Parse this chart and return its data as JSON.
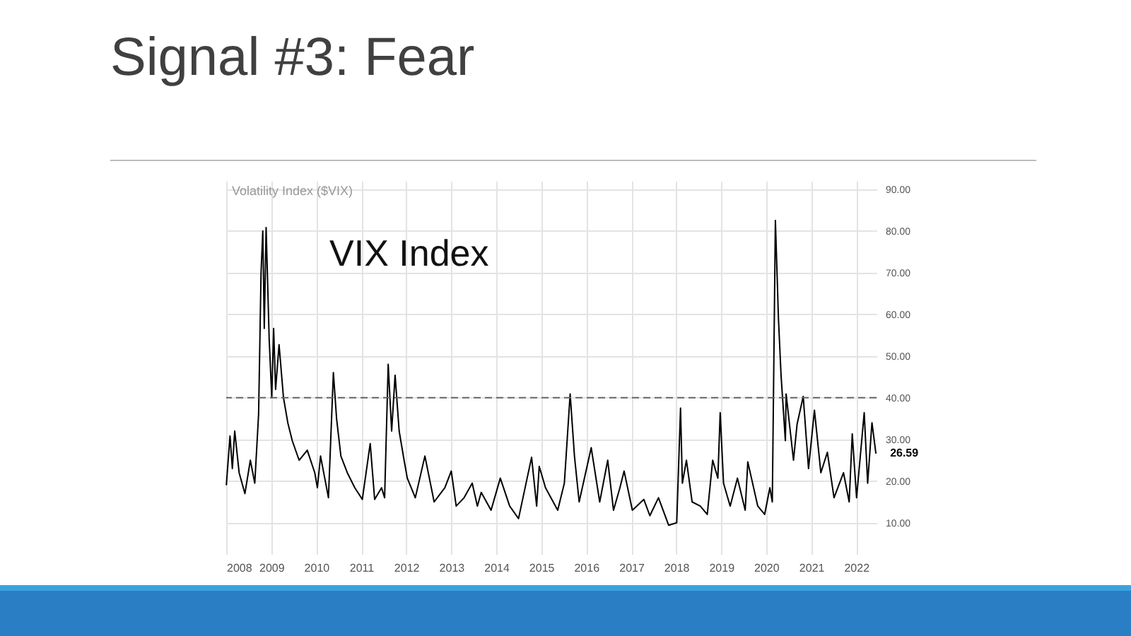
{
  "chart_data": {
    "type": "line",
    "title": "Signal #3: Fear",
    "subtitle": "Volatility Index ($VIX)",
    "annotations": [
      "VIX Index"
    ],
    "x": [
      "2008-01-02",
      "2008-02-01",
      "2008-02-20",
      "2008-03-10",
      "2008-04-15",
      "2008-06-01",
      "2008-07-15",
      "2008-08-20",
      "2008-09-20",
      "2008-10-10",
      "2008-10-24",
      "2008-11-05",
      "2008-11-20",
      "2008-12-15",
      "2009-01-05",
      "2009-01-20",
      "2009-02-05",
      "2009-03-05",
      "2009-04-10",
      "2009-05-15",
      "2009-06-20",
      "2009-08-15",
      "2009-10-20",
      "2009-12-20",
      "2010-01-10",
      "2010-02-05",
      "2010-04-10",
      "2010-05-20",
      "2010-06-15",
      "2010-07-20",
      "2010-09-10",
      "2010-11-10",
      "2011-01-10",
      "2011-03-15",
      "2011-04-20",
      "2011-06-15",
      "2011-07-10",
      "2011-08-08",
      "2011-09-05",
      "2011-10-03",
      "2011-11-05",
      "2011-12-15",
      "2012-01-10",
      "2012-03-15",
      "2012-06-01",
      "2012-08-15",
      "2012-11-10",
      "2013-01-01",
      "2013-02-10",
      "2013-04-15",
      "2013-06-20",
      "2013-08-01",
      "2013-09-01",
      "2013-11-20",
      "2014-02-03",
      "2014-04-20",
      "2014-07-01",
      "2014-10-15",
      "2014-11-25",
      "2014-12-16",
      "2015-02-05",
      "2015-05-15",
      "2015-07-08",
      "2015-08-24",
      "2015-09-28",
      "2015-11-05",
      "2016-02-11",
      "2016-04-20",
      "2016-06-24",
      "2016-08-10",
      "2016-10-01",
      "2016-11-04",
      "2017-01-10",
      "2017-04-13",
      "2017-06-01",
      "2017-08-10",
      "2017-11-01",
      "2018-01-05",
      "2018-02-05",
      "2018-02-20",
      "2018-03-25",
      "2018-05-10",
      "2018-07-15",
      "2018-09-10",
      "2018-10-24",
      "2018-12-05",
      "2018-12-24",
      "2019-01-20",
      "2019-03-15",
      "2019-05-13",
      "2019-07-15",
      "2019-08-05",
      "2019-10-25",
      "2019-12-20",
      "2020-01-31",
      "2020-02-20",
      "2020-03-16",
      "2020-04-10",
      "2020-05-01",
      "2020-06-05",
      "2020-06-11",
      "2020-08-10",
      "2020-09-08",
      "2020-10-28",
      "2020-12-10",
      "2021-01-27",
      "2021-03-20",
      "2021-05-12",
      "2021-07-05",
      "2021-09-20",
      "2021-11-05",
      "2021-11-30",
      "2022-01-04",
      "2022-03-07",
      "2022-04-04",
      "2022-05-09",
      "2022-06-10"
    ],
    "series": [
      {
        "color": "#000000",
        "values": [
          19,
          30.8,
          23,
          32,
          22,
          17,
          25,
          19.5,
          36,
          70,
          80,
          56.6,
          80.8,
          54,
          40,
          56.6,
          42,
          52.7,
          40,
          34,
          29.7,
          25,
          27.4,
          22,
          18.4,
          26,
          16,
          46,
          35,
          26,
          22,
          18.4,
          15.6,
          29,
          15.6,
          18.4,
          16,
          48,
          32,
          45.4,
          32,
          25,
          20.7,
          16,
          26,
          15,
          18.4,
          22.4,
          14,
          16,
          19.5,
          14,
          17.3,
          13,
          20.7,
          14,
          11,
          25.7,
          14,
          23.5,
          18.4,
          13,
          19.5,
          40.9,
          26,
          15,
          28,
          15,
          25,
          13,
          18.4,
          22.4,
          13,
          15.6,
          11.7,
          16,
          9.4,
          10,
          37.5,
          19.5,
          25,
          15,
          14,
          12,
          25,
          20.7,
          36.4,
          19.5,
          14,
          20.7,
          13,
          24.6,
          14,
          12,
          18.4,
          15,
          82.5,
          58.9,
          45.4,
          29.7,
          40.9,
          25,
          33.6,
          40.3,
          23,
          37,
          22,
          26.9,
          16,
          22,
          15,
          31.3,
          16,
          36.4,
          19.5,
          34,
          26.59
        ],
        "value_labels": [
          null,
          null,
          null,
          null,
          null,
          null,
          null,
          null,
          null,
          null,
          null,
          null,
          null,
          null,
          null,
          null,
          null,
          null,
          null,
          null,
          null,
          null,
          null,
          null,
          null,
          null,
          null,
          null,
          null,
          null,
          null,
          null,
          null,
          null,
          null,
          null,
          null,
          null,
          null,
          null,
          null,
          null,
          null,
          null,
          null,
          null,
          null,
          null,
          null,
          null,
          null,
          null,
          null,
          null,
          null,
          null,
          null,
          null,
          null,
          null,
          null,
          null,
          null,
          null,
          null,
          null,
          null,
          null,
          null,
          null,
          null,
          null,
          null,
          null,
          null,
          null,
          null,
          null,
          null,
          null,
          null,
          null,
          null,
          null,
          null,
          null,
          null,
          null,
          null,
          null,
          null,
          null,
          null,
          null,
          null,
          null,
          null,
          null,
          null,
          null,
          null,
          null,
          null,
          null,
          null,
          null,
          null,
          null,
          null,
          null,
          null,
          null,
          null,
          null,
          null,
          null,
          "26.59"
        ]
      }
    ],
    "xlim": [
      "2008-01-01",
      "2022-06-15"
    ],
    "xticks": [
      "2008",
      "2009",
      "2010",
      "2011",
      "2012",
      "2013",
      "2014",
      "2015",
      "2016",
      "2017",
      "2018",
      "2019",
      "2020",
      "2021",
      "2022"
    ],
    "ylim": [
      2.5,
      92
    ],
    "yticks": [
      {
        "value": 10,
        "label": "10.00"
      },
      {
        "value": 20,
        "label": "20.00"
      },
      {
        "value": 30,
        "label": "30.00"
      },
      {
        "value": 40,
        "label": "40.00"
      },
      {
        "value": 50,
        "label": "50.00"
      },
      {
        "value": 60,
        "label": "60.00"
      },
      {
        "value": 70,
        "label": "70.00"
      },
      {
        "value": 80,
        "label": "80.00"
      },
      {
        "value": 90,
        "label": "90.00"
      }
    ],
    "ref_lines": [
      {
        "axis": "y",
        "value": 40,
        "color": "#666666",
        "line_style": "dashed"
      }
    ],
    "grid": true,
    "marker": "none",
    "line_style": "solid"
  }
}
